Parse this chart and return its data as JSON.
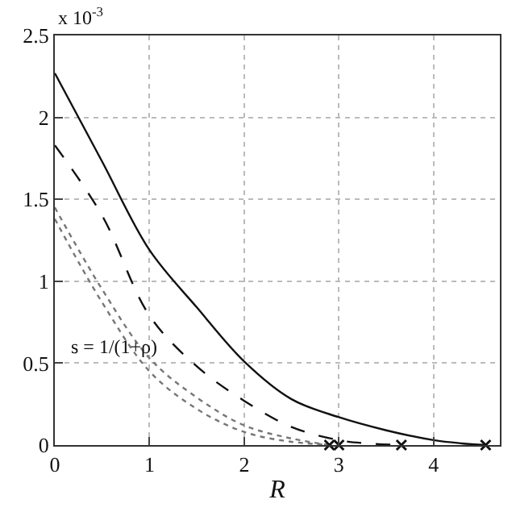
{
  "chart_data": {
    "type": "line",
    "xlabel": "R",
    "annotations": [
      "x 10$^{-3}$",
      "s = 1/(1+ρ)"
    ],
    "xlim": [
      0,
      4.7
    ],
    "xticks": [
      0,
      1,
      2,
      3,
      4
    ],
    "ylim": [
      0,
      2.5
    ],
    "yticks": [
      0,
      0.5,
      1,
      1.5,
      2,
      2.5
    ],
    "grid": true,
    "series": [
      {
        "color": "#111111",
        "line_style": "solid",
        "x": [
          0,
          0.5,
          1,
          1.5,
          2,
          2.5,
          3,
          3.5,
          4,
          4.3,
          4.55
        ],
        "values": [
          2.27,
          1.73,
          1.19,
          0.84,
          0.51,
          0.28,
          0.17,
          0.09,
          0.03,
          0.01,
          0
        ]
      },
      {
        "color": "#111111",
        "line_style": "dashed",
        "x": [
          0,
          0.5,
          1,
          1.5,
          2,
          2.5,
          3,
          3.3,
          3.66
        ],
        "values": [
          1.83,
          1.4,
          0.79,
          0.48,
          0.27,
          0.11,
          0.03,
          0.01,
          0
        ]
      },
      {
        "color": "#777777",
        "line_style": "dotted",
        "x": [
          0,
          0.5,
          1,
          1.5,
          2,
          2.5,
          2.9
        ],
        "values": [
          1.45,
          0.95,
          0.53,
          0.29,
          0.12,
          0.04,
          0
        ]
      },
      {
        "color": "#777777",
        "line_style": "dotted",
        "x": [
          0,
          0.5,
          1,
          1.5,
          2,
          2.5,
          3
        ],
        "values": [
          1.38,
          0.87,
          0.45,
          0.22,
          0.08,
          0.02,
          0
        ]
      },
      {
        "type": "scatter",
        "marker": "cross",
        "color": "#111111",
        "x": [
          2.9,
          3,
          3.66,
          4.55
        ],
        "values": [
          0,
          0,
          0,
          0
        ]
      }
    ]
  }
}
